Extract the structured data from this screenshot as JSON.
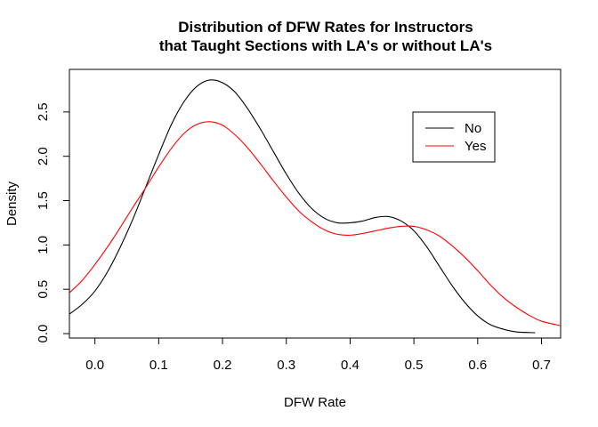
{
  "chart_data": {
    "type": "line",
    "title_line1": "Distribution of DFW Rates for Instructors",
    "title_line2": "that Taught Sections with LA's or without LA's",
    "xlabel": "DFW Rate",
    "ylabel": "Density",
    "xlim": [
      -0.04,
      0.73
    ],
    "ylim": [
      -0.05,
      2.98
    ],
    "x_ticks": [
      0.0,
      0.1,
      0.2,
      0.3,
      0.4,
      0.5,
      0.6,
      0.7
    ],
    "x_tick_labels": [
      "0.0",
      "0.1",
      "0.2",
      "0.3",
      "0.4",
      "0.5",
      "0.6",
      "0.7"
    ],
    "y_ticks": [
      0.0,
      0.5,
      1.0,
      1.5,
      2.0,
      2.5
    ],
    "y_tick_labels": [
      "0.0",
      "0.5",
      "1.0",
      "1.5",
      "2.0",
      "2.5"
    ],
    "grid": false,
    "legend_position": "top-right",
    "series": [
      {
        "name": "No",
        "color": "#000000",
        "x": [
          -0.04,
          -0.02,
          0.0,
          0.02,
          0.04,
          0.06,
          0.08,
          0.1,
          0.12,
          0.14,
          0.16,
          0.18,
          0.2,
          0.22,
          0.24,
          0.26,
          0.28,
          0.3,
          0.32,
          0.34,
          0.36,
          0.38,
          0.4,
          0.42,
          0.44,
          0.46,
          0.48,
          0.5,
          0.52,
          0.54,
          0.56,
          0.58,
          0.6,
          0.62,
          0.64,
          0.66,
          0.69
        ],
        "y": [
          0.22,
          0.33,
          0.48,
          0.7,
          0.98,
          1.3,
          1.66,
          2.02,
          2.36,
          2.62,
          2.79,
          2.86,
          2.83,
          2.72,
          2.53,
          2.3,
          2.05,
          1.8,
          1.58,
          1.41,
          1.3,
          1.25,
          1.25,
          1.27,
          1.31,
          1.32,
          1.27,
          1.16,
          0.98,
          0.76,
          0.54,
          0.35,
          0.2,
          0.1,
          0.05,
          0.02,
          0.01
        ]
      },
      {
        "name": "Yes",
        "color": "#ff0000",
        "x": [
          -0.04,
          -0.02,
          0.0,
          0.02,
          0.04,
          0.06,
          0.08,
          0.1,
          0.12,
          0.14,
          0.16,
          0.18,
          0.2,
          0.22,
          0.24,
          0.26,
          0.28,
          0.3,
          0.32,
          0.34,
          0.36,
          0.38,
          0.4,
          0.42,
          0.44,
          0.46,
          0.48,
          0.5,
          0.52,
          0.54,
          0.56,
          0.58,
          0.6,
          0.62,
          0.64,
          0.66,
          0.68,
          0.7,
          0.73
        ],
        "y": [
          0.46,
          0.6,
          0.78,
          0.98,
          1.2,
          1.43,
          1.65,
          1.88,
          2.09,
          2.26,
          2.36,
          2.39,
          2.35,
          2.24,
          2.09,
          1.91,
          1.72,
          1.54,
          1.38,
          1.26,
          1.17,
          1.12,
          1.11,
          1.13,
          1.16,
          1.19,
          1.21,
          1.21,
          1.17,
          1.1,
          0.99,
          0.86,
          0.71,
          0.55,
          0.41,
          0.3,
          0.21,
          0.14,
          0.09
        ]
      }
    ]
  }
}
